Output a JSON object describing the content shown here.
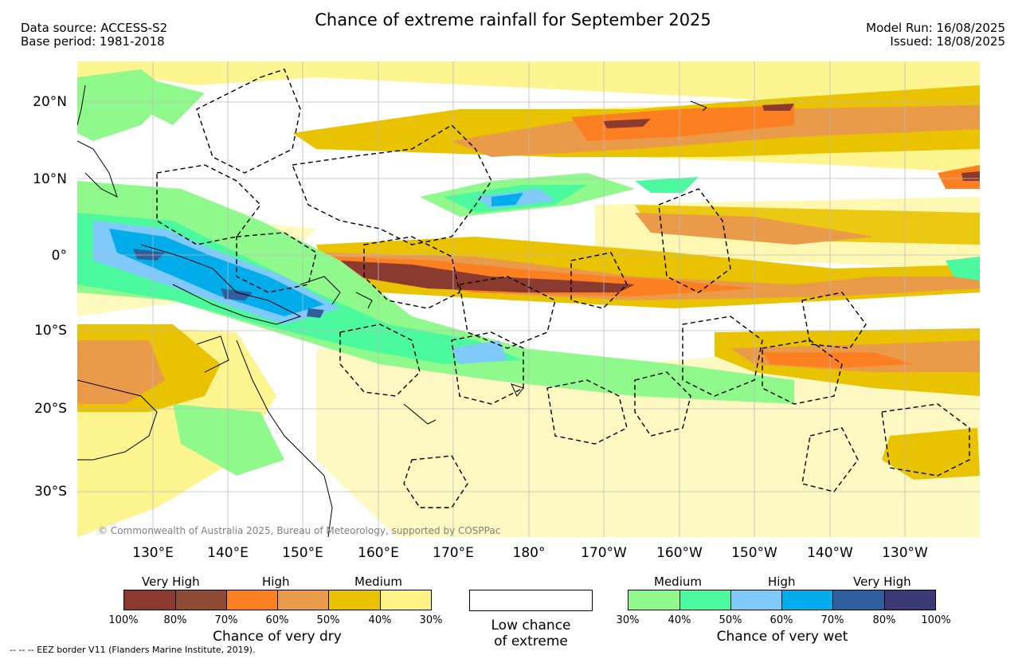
{
  "header": {
    "title": "Chance of extreme rainfall for September 2025",
    "data_source": "Data source: ACCESS-S2",
    "base_period": "Base period: 1981-2018",
    "model_run": "Model Run: 16/08/2025",
    "issued": "Issued: 18/08/2025"
  },
  "map": {
    "copyright": "© Commonwealth of Australia 2025, Bureau of Meteorology, supported by COSPPac",
    "lat_labels": [
      "20°N",
      "10°N",
      "0°",
      "10°S",
      "20°S",
      "30°S"
    ],
    "lon_labels": [
      "130°E",
      "140°E",
      "150°E",
      "160°E",
      "170°E",
      "180°",
      "170°W",
      "160°W",
      "150°W",
      "140°W",
      "130°W"
    ]
  },
  "legend": {
    "dry": {
      "categories": [
        "Very High",
        "High",
        "Medium"
      ],
      "ticks": [
        "100%",
        "80%",
        "70%",
        "60%",
        "50%",
        "40%",
        "30%"
      ],
      "colors": [
        "#8b3a30",
        "#8f4a33",
        "#fc7f22",
        "#e99b4a",
        "#e9c200",
        "#fef384"
      ],
      "caption": "Chance of very dry"
    },
    "neutral": {
      "label_line1": "Low chance",
      "label_line2": "of extreme",
      "color": "#ffffff"
    },
    "wet": {
      "categories": [
        "Medium",
        "High",
        "Very High"
      ],
      "ticks": [
        "30%",
        "40%",
        "50%",
        "60%",
        "70%",
        "80%",
        "100%"
      ],
      "colors": [
        "#8ff98c",
        "#4bf99e",
        "#7fc9fb",
        "#00adea",
        "#2f5e9d",
        "#3b3a76"
      ],
      "caption": "Chance of very wet"
    }
  },
  "footnote": "--  --  -- EEZ border V11 (Flanders Marine Institute, 2019)."
}
